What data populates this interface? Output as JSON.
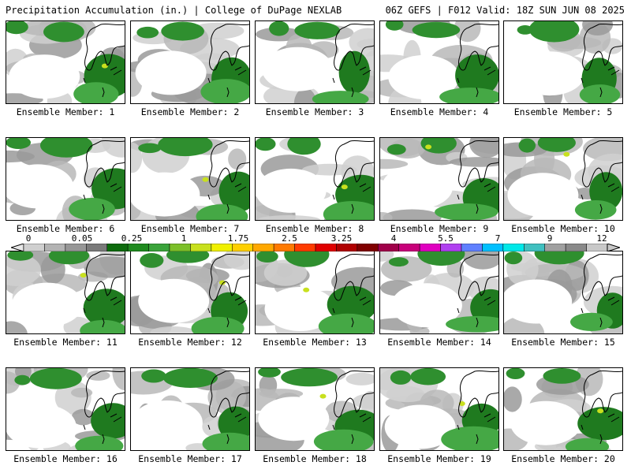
{
  "header": {
    "left_title": "Precipitation Accumulation (in.) | College of DuPage NEXLAB",
    "right_title": "06Z GEFS | F012 Valid: 18Z SUN JUN 08 2025"
  },
  "colorbar": {
    "tick_labels": [
      "0",
      "0.05",
      "0.25",
      "1",
      "1.75",
      "2.5",
      "3.25",
      "4",
      "5.5",
      "7",
      "9",
      "12"
    ],
    "colors": [
      "#cfcfcf",
      "#b3b3b3",
      "#969696",
      "#7a7a7a",
      "#0c6b0c",
      "#1f8a1f",
      "#3aa33a",
      "#7cc02a",
      "#c8e01e",
      "#f0f000",
      "#ffd000",
      "#ffa800",
      "#ff7a00",
      "#ff3b00",
      "#e00000",
      "#b00000",
      "#800000",
      "#a0004a",
      "#c8007a",
      "#e000c0",
      "#b040f0",
      "#6080ff",
      "#00c0ff",
      "#00e8e8",
      "#40c0c0",
      "#a0a0a0",
      "#8a8a8a",
      "#c8c8c8"
    ]
  },
  "members": [
    {
      "label": "Ensemble Member: 1"
    },
    {
      "label": "Ensemble Member: 2"
    },
    {
      "label": "Ensemble Member: 3"
    },
    {
      "label": "Ensemble Member: 4"
    },
    {
      "label": "Ensemble Member: 5"
    },
    {
      "label": "Ensemble Member: 6"
    },
    {
      "label": "Ensemble Member: 7"
    },
    {
      "label": "Ensemble Member: 8"
    },
    {
      "label": "Ensemble Member: 9"
    },
    {
      "label": "Ensemble Member: 10"
    },
    {
      "label": "Ensemble Member: 11"
    },
    {
      "label": "Ensemble Member: 12"
    },
    {
      "label": "Ensemble Member: 13"
    },
    {
      "label": "Ensemble Member: 14"
    },
    {
      "label": "Ensemble Member: 15"
    },
    {
      "label": "Ensemble Member: 16"
    },
    {
      "label": "Ensemble Member: 17"
    },
    {
      "label": "Ensemble Member: 18"
    },
    {
      "label": "Ensemble Member: 19"
    },
    {
      "label": "Ensemble Member: 20"
    }
  ]
}
